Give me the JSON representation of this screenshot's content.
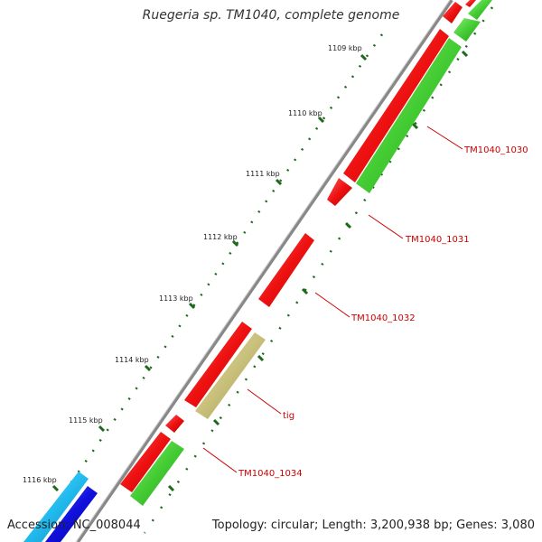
{
  "title": "Ruegeria sp. TM1040, complete genome",
  "footer": {
    "accession": "Accession: NC_008044",
    "summary": "Topology: circular; Length: 3,200,938 bp; Genes: 3,080"
  },
  "scale_ticks": [
    "1109 kbp",
    "1110 kbp",
    "1111 kbp",
    "1112 kbp",
    "1113 kbp",
    "1114 kbp",
    "1115 kbp",
    "1116 kbp"
  ],
  "gene_labels": [
    "TM1040_1030",
    "TM1040_1031",
    "TM1040_1032",
    "tig",
    "TM1040_1034"
  ],
  "colors": {
    "forward_gene": "#ee1111",
    "reverse_gene": "#44cc33",
    "tig_gene": "#c8c07a",
    "cyan_gene": "#22bbee",
    "blue_gene": "#1111dd",
    "backbone": "#888888",
    "tick_mark": "#226622",
    "label_red": "#cc0000"
  }
}
